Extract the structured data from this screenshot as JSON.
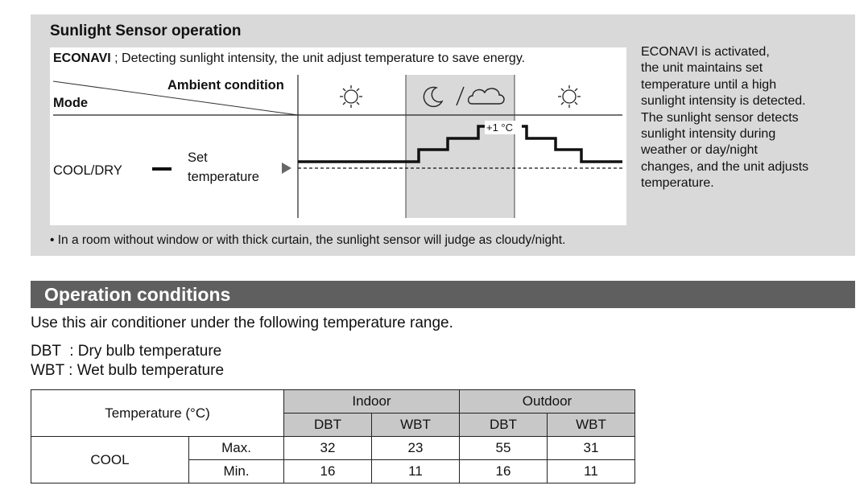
{
  "sunlight": {
    "title": "Sunlight Sensor operation",
    "econavi_bold": "ECONAVI",
    "econavi_rest": " ; Detecting sunlight intensity, the unit adjust temperature to save energy.",
    "ambient_label": "Ambient condition",
    "mode_label": "Mode",
    "mode_value": "COOL/DRY",
    "set_line1": "Set",
    "set_line2": "temperature",
    "step_label": "+1 °C",
    "conditions": [
      "sunny-icon",
      "moon-icon",
      "cloud-icon",
      "sunny-icon"
    ],
    "description": "ECONAVI is activated, the unit maintains set temperature until a high sunlight intensity is detected. The sunlight sensor detects sunlight intensity during weather or day/night changes, and the unit adjusts temperature.",
    "description_lines": [
      "ECONAVI is activated,",
      "the unit maintains set",
      "temperature until a high",
      "sunlight intensity is detected.",
      "The sunlight sensor detects",
      "sunlight intensity during",
      "weather or day/night",
      "changes, and the unit adjusts",
      "temperature."
    ],
    "footnote": "• In a room without window or with thick curtain, the sunlight sensor will judge as cloudy/night."
  },
  "operation": {
    "title": "Operation conditions",
    "intro": "Use this air conditioner under the following temperature range.",
    "dbt_def": "DBT  : Dry bulb temperature",
    "wbt_def": "WBT : Wet bulb temperature",
    "table": {
      "corner": "Temperature (°C)",
      "indoor": "Indoor",
      "outdoor": "Outdoor",
      "dbt": "DBT",
      "wbt": "WBT",
      "mode": "COOL",
      "rows": [
        {
          "label": "Max.",
          "indoor_dbt": "32",
          "indoor_wbt": "23",
          "outdoor_dbt": "55",
          "outdoor_wbt": "31"
        },
        {
          "label": "Min.",
          "indoor_dbt": "16",
          "indoor_wbt": "11",
          "outdoor_dbt": "16",
          "outdoor_wbt": "11"
        }
      ]
    }
  }
}
